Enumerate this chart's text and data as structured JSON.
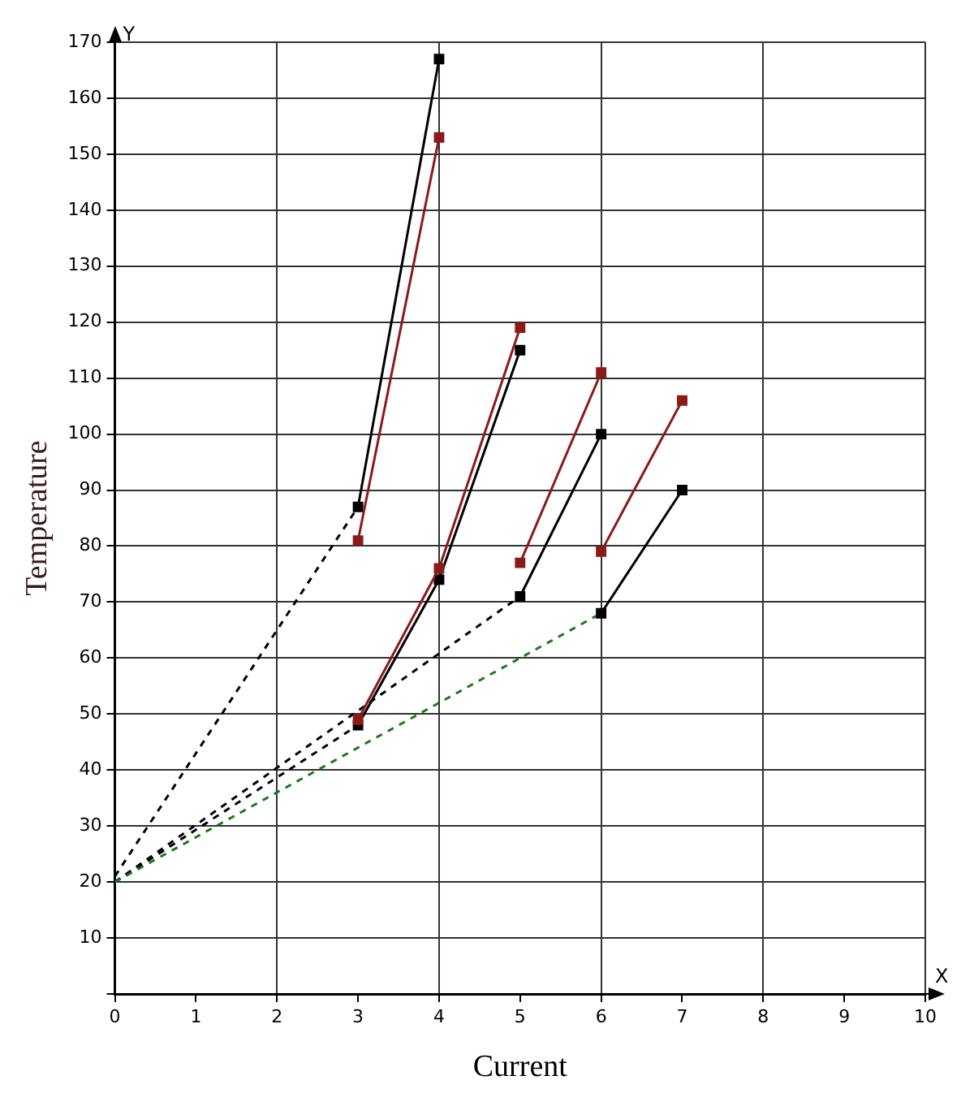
{
  "chart_data": {
    "type": "line",
    "xlabel": "Current",
    "ylabel": "Temperature",
    "annotations": [
      "Y",
      "X"
    ],
    "xlim": [
      0,
      10
    ],
    "xticks": [
      0,
      1,
      2,
      3,
      4,
      5,
      6,
      7,
      8,
      9,
      10
    ],
    "ylim": [
      0,
      170
    ],
    "yticks": [
      {
        "value": 0,
        "label": null
      },
      10,
      20,
      30,
      40,
      50,
      60,
      70,
      80,
      90,
      100,
      110,
      120,
      130,
      140,
      150,
      160,
      170
    ],
    "grid": true,
    "legend": false,
    "series": [
      {
        "color": "#000000",
        "line_style": "dashed",
        "x": [
          0,
          3
        ],
        "values": [
          21,
          87
        ]
      },
      {
        "color": "#000000",
        "line_style": "dashed",
        "x": [
          0,
          3
        ],
        "values": [
          20,
          48
        ]
      },
      {
        "color": "#000000",
        "line_style": "dashed",
        "x": [
          0,
          5
        ],
        "values": [
          20,
          71
        ]
      },
      {
        "color": "#1a7a1a",
        "line_style": "dashed",
        "x": [
          0,
          6
        ],
        "values": [
          20,
          68
        ]
      },
      {
        "color": "#000000",
        "line_style": "solid",
        "marker": "square",
        "x": [
          3,
          4
        ],
        "values": [
          87,
          167
        ]
      },
      {
        "color": "#8b1a1a",
        "line_style": "solid",
        "marker": "square",
        "x": [
          3,
          4
        ],
        "values": [
          81,
          153
        ]
      },
      {
        "color": "#000000",
        "line_style": "solid",
        "marker": "square",
        "x": [
          3,
          4,
          5
        ],
        "values": [
          48,
          74,
          115
        ]
      },
      {
        "color": "#8b1a1a",
        "line_style": "solid",
        "marker": "square",
        "x": [
          3,
          4,
          5
        ],
        "values": [
          49,
          76,
          119
        ]
      },
      {
        "color": "#000000",
        "line_style": "solid",
        "marker": "square",
        "x": [
          5,
          6
        ],
        "values": [
          71,
          100
        ]
      },
      {
        "color": "#8b1a1a",
        "line_style": "solid",
        "marker": "square",
        "x": [
          5,
          6
        ],
        "values": [
          77,
          111
        ]
      },
      {
        "color": "#000000",
        "line_style": "solid",
        "marker": "square",
        "x": [
          6,
          7
        ],
        "values": [
          68,
          90
        ]
      },
      {
        "color": "#8b1a1a",
        "line_style": "solid",
        "marker": "square",
        "x": [
          6,
          7
        ],
        "values": [
          79,
          106
        ]
      }
    ]
  }
}
